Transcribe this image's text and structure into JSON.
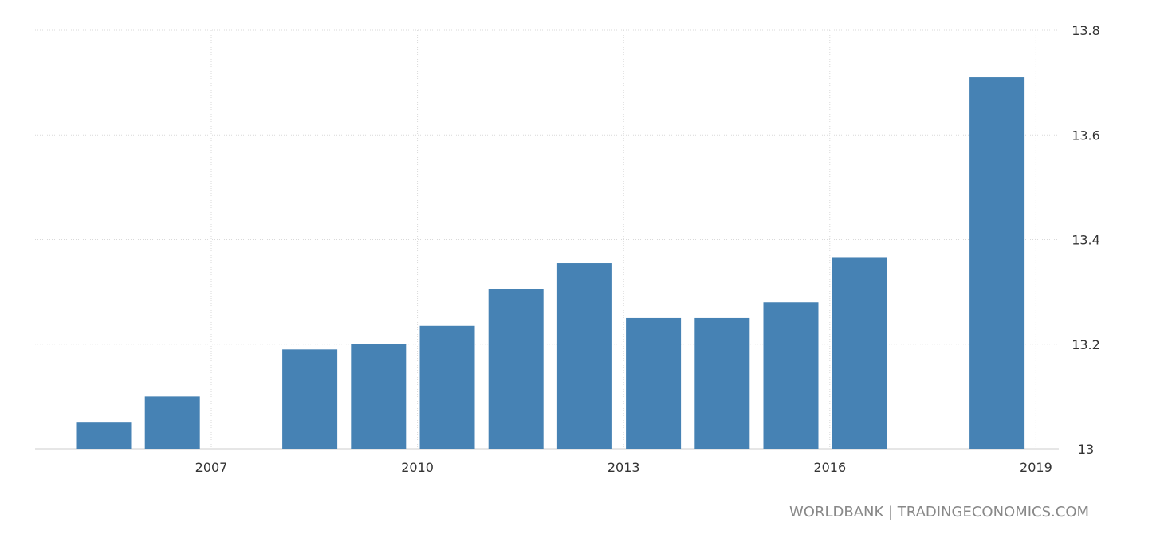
{
  "chart_data": {
    "type": "bar",
    "x": [
      2005,
      2006,
      2007,
      2008,
      2009,
      2010,
      2011,
      2012,
      2013,
      2014,
      2015,
      2016,
      2017,
      2018
    ],
    "values": [
      13.05,
      13.1,
      null,
      13.19,
      13.2,
      13.235,
      13.305,
      13.355,
      13.25,
      13.25,
      13.28,
      13.365,
      null,
      13.71
    ],
    "x_ticks": [
      2007,
      2010,
      2013,
      2016,
      2019
    ],
    "y_ticks": [
      13,
      13.2,
      13.4,
      13.6,
      13.8
    ],
    "ylim": [
      13,
      13.8
    ],
    "grid": true,
    "bar_color": "#4682b4",
    "grid_color": "#d9d9d9"
  },
  "source": "WORLDBANK | TRADINGECONOMICS.COM"
}
